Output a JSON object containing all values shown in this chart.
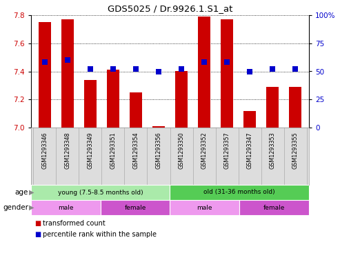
{
  "title": "GDS5025 / Dr.9926.1.S1_at",
  "samples": [
    "GSM1293346",
    "GSM1293348",
    "GSM1293349",
    "GSM1293351",
    "GSM1293354",
    "GSM1293356",
    "GSM1293350",
    "GSM1293352",
    "GSM1293357",
    "GSM1293347",
    "GSM1293353",
    "GSM1293355"
  ],
  "transformed_count": [
    7.75,
    7.77,
    7.34,
    7.41,
    7.25,
    7.01,
    7.4,
    7.79,
    7.77,
    7.12,
    7.29,
    7.29
  ],
  "percentile_rank": [
    58,
    60,
    52,
    52,
    52,
    50,
    52,
    58,
    58,
    50,
    52,
    52
  ],
  "ylim_left": [
    7.0,
    7.8
  ],
  "ylim_right": [
    0,
    100
  ],
  "yticks_left": [
    7.0,
    7.2,
    7.4,
    7.6,
    7.8
  ],
  "yticks_right": [
    0,
    25,
    50,
    75,
    100
  ],
  "ytick_labels_right": [
    "0",
    "25",
    "50",
    "75",
    "100%"
  ],
  "bar_color": "#cc0000",
  "dot_color": "#0000cc",
  "background_color": "#ffffff",
  "chart_bg": "#ffffff",
  "age_groups": [
    {
      "label": "young (7.5-8.5 months old)",
      "start": 0,
      "end": 6,
      "color": "#aaeaaa"
    },
    {
      "label": "old (31-36 months old)",
      "start": 6,
      "end": 12,
      "color": "#55cc55"
    }
  ],
  "gender_groups": [
    {
      "label": "male",
      "start": 0,
      "end": 3,
      "color": "#ee99ee"
    },
    {
      "label": "female",
      "start": 3,
      "end": 6,
      "color": "#cc55cc"
    },
    {
      "label": "male",
      "start": 6,
      "end": 9,
      "color": "#ee99ee"
    },
    {
      "label": "female",
      "start": 9,
      "end": 12,
      "color": "#cc55cc"
    }
  ],
  "age_label": "age",
  "gender_label": "gender",
  "legend_items": [
    {
      "label": "transformed count",
      "color": "#cc0000"
    },
    {
      "label": "percentile rank within the sample",
      "color": "#0000cc"
    }
  ],
  "bar_width": 0.55,
  "dot_size": 40,
  "bar_baseline": 7.0,
  "axis_left_color": "#cc0000",
  "axis_right_color": "#0000cc",
  "sample_bg": "#dddddd"
}
